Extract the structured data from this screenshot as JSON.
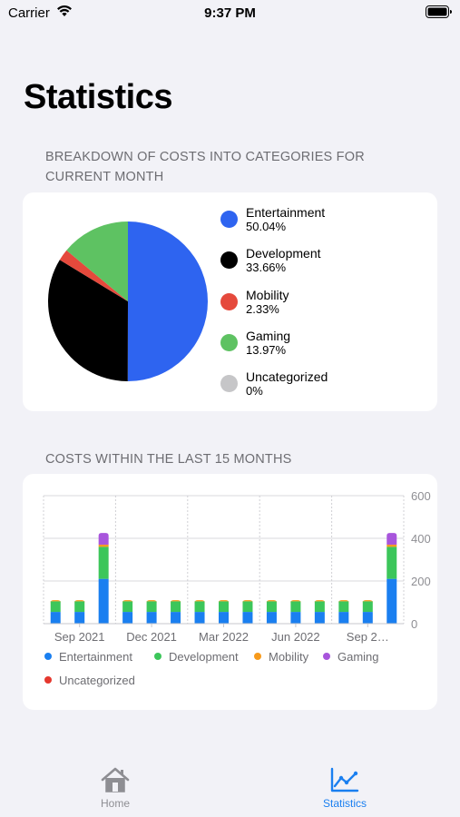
{
  "status_bar": {
    "carrier": "Carrier",
    "time": "9:37 PM"
  },
  "page_title": "Statistics",
  "sections": {
    "breakdown_header_line1": "BREAKDOWN OF COSTS INTO CATEGORIES FOR",
    "breakdown_header_line2": "CURRENT MONTH",
    "history_header": "COSTS WITHIN THE LAST 15 MONTHS"
  },
  "pie": {
    "items": [
      {
        "label": "Entertainment",
        "percent": "50.04%",
        "value": 50.04,
        "color": "#2e64f0"
      },
      {
        "label": "Development",
        "percent": "33.66%",
        "value": 33.66,
        "color": "#000000"
      },
      {
        "label": "Mobility",
        "percent": "2.33%",
        "value": 2.33,
        "color": "#e5493c"
      },
      {
        "label": "Gaming",
        "percent": "13.97%",
        "value": 13.97,
        "color": "#5ec262"
      },
      {
        "label": "Uncategorized",
        "percent": "0%",
        "value": 0,
        "color": "#c6c6c8"
      }
    ]
  },
  "chart_data": {
    "type": "bar",
    "stacked": true,
    "x_tick_labels": [
      "Sep 2021",
      "Dec 2021",
      "Mar 2022",
      "Jun 2022",
      "Sep 2…"
    ],
    "y_ticks": [
      "600",
      "400",
      "200",
      "0"
    ],
    "ylim": [
      0,
      600
    ],
    "series": [
      {
        "name": "Entertainment",
        "color": "#1a7ff0",
        "values": [
          55,
          55,
          210,
          55,
          55,
          55,
          55,
          55,
          55,
          55,
          55,
          55,
          55,
          55,
          210
        ]
      },
      {
        "name": "Development",
        "color": "#3cc65a",
        "values": [
          50,
          50,
          150,
          50,
          50,
          50,
          50,
          50,
          50,
          50,
          50,
          50,
          50,
          50,
          150
        ]
      },
      {
        "name": "Mobility",
        "color": "#f79a1b",
        "values": [
          5,
          5,
          10,
          5,
          5,
          5,
          5,
          5,
          5,
          5,
          5,
          5,
          5,
          5,
          10
        ]
      },
      {
        "name": "Gaming",
        "color": "#a855dc",
        "values": [
          0,
          0,
          55,
          0,
          0,
          0,
          0,
          0,
          0,
          0,
          0,
          0,
          0,
          0,
          55
        ]
      },
      {
        "name": "Uncategorized",
        "color": "#e5382e",
        "values": [
          0,
          0,
          0,
          0,
          0,
          0,
          0,
          0,
          0,
          0,
          0,
          0,
          0,
          0,
          0
        ]
      }
    ]
  },
  "tabs": [
    {
      "label": "Home",
      "icon": "house-icon",
      "color": "#8e8e93"
    },
    {
      "label": "Statistics",
      "icon": "chart-line-icon",
      "color": "#1a7ff0"
    }
  ]
}
